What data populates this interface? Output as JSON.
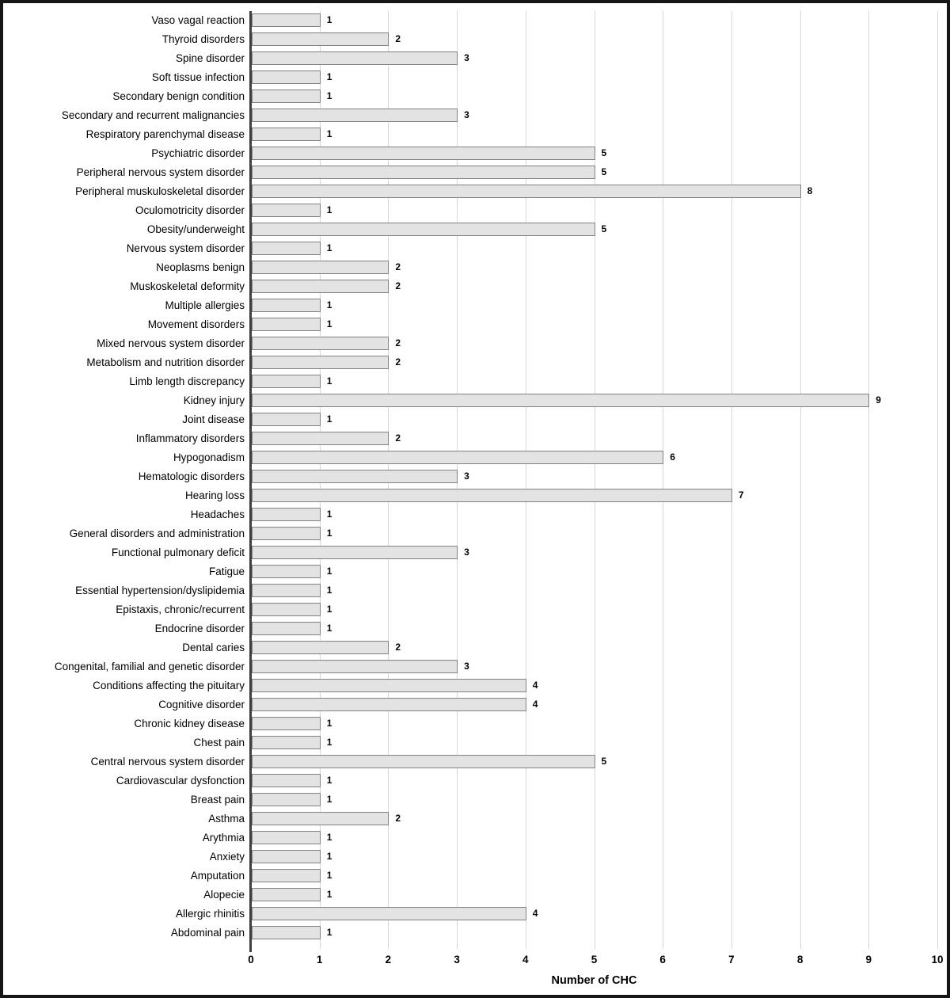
{
  "colors": {
    "bar_fill": "#e3e3e3",
    "bar_border": "#828282",
    "gridline": "#d6d6d6",
    "axis_line": "#3f3f3f",
    "frame_border": "#161616",
    "text": "#000000",
    "background": "#ffffff"
  },
  "chart_data": {
    "type": "bar",
    "orientation": "horizontal",
    "title": "",
    "xlabel": "Number of CHC",
    "ylabel": "",
    "xlim": [
      0,
      10
    ],
    "xticks": [
      0,
      1,
      2,
      3,
      4,
      5,
      6,
      7,
      8,
      9,
      10
    ],
    "grid": true,
    "legend": false,
    "data_labels": true,
    "categories": [
      "Vaso vagal reaction",
      "Thyroid disorders",
      "Spine disorder",
      "Soft tissue infection",
      "Secondary benign condition",
      "Secondary and recurrent malignancies",
      "Respiratory parenchymal disease",
      "Psychiatric disorder",
      "Peripheral nervous system disorder",
      "Peripheral muskuloskeletal disorder",
      "Oculomotricity disorder",
      "Obesity/underweight",
      "Nervous system disorder",
      "Neoplasms benign",
      "Muskoskeletal deformity",
      "Multiple allergies",
      "Movement disorders",
      "Mixed nervous system disorder",
      "Metabolism and nutrition disorder",
      "Limb length discrepancy",
      "Kidney injury",
      "Joint disease",
      "Inflammatory disorders",
      "Hypogonadism",
      "Hematologic disorders",
      "Hearing loss",
      "Headaches",
      "General disorders and administration",
      "Functional pulmonary deficit",
      "Fatigue",
      "Essential hypertension/dyslipidemia",
      "Epistaxis, chronic/recurrent",
      "Endocrine disorder",
      "Dental caries",
      "Congenital, familial and genetic disorder",
      "Conditions affecting the pituitary",
      "Cognitive disorder",
      "Chronic kidney disease",
      "Chest pain",
      "Central nervous system disorder",
      "Cardiovascular dysfonction",
      "Breast pain",
      "Asthma",
      "Arythmia",
      "Anxiety",
      "Amputation",
      "Alopecie",
      "Allergic rhinitis",
      "Abdominal pain"
    ],
    "values": [
      1,
      2,
      3,
      1,
      1,
      3,
      1,
      5,
      5,
      8,
      1,
      5,
      1,
      2,
      2,
      1,
      1,
      2,
      2,
      1,
      9,
      1,
      2,
      6,
      3,
      7,
      1,
      1,
      3,
      1,
      1,
      1,
      1,
      2,
      3,
      4,
      4,
      1,
      1,
      5,
      1,
      1,
      2,
      1,
      1,
      1,
      1,
      4,
      1
    ]
  }
}
